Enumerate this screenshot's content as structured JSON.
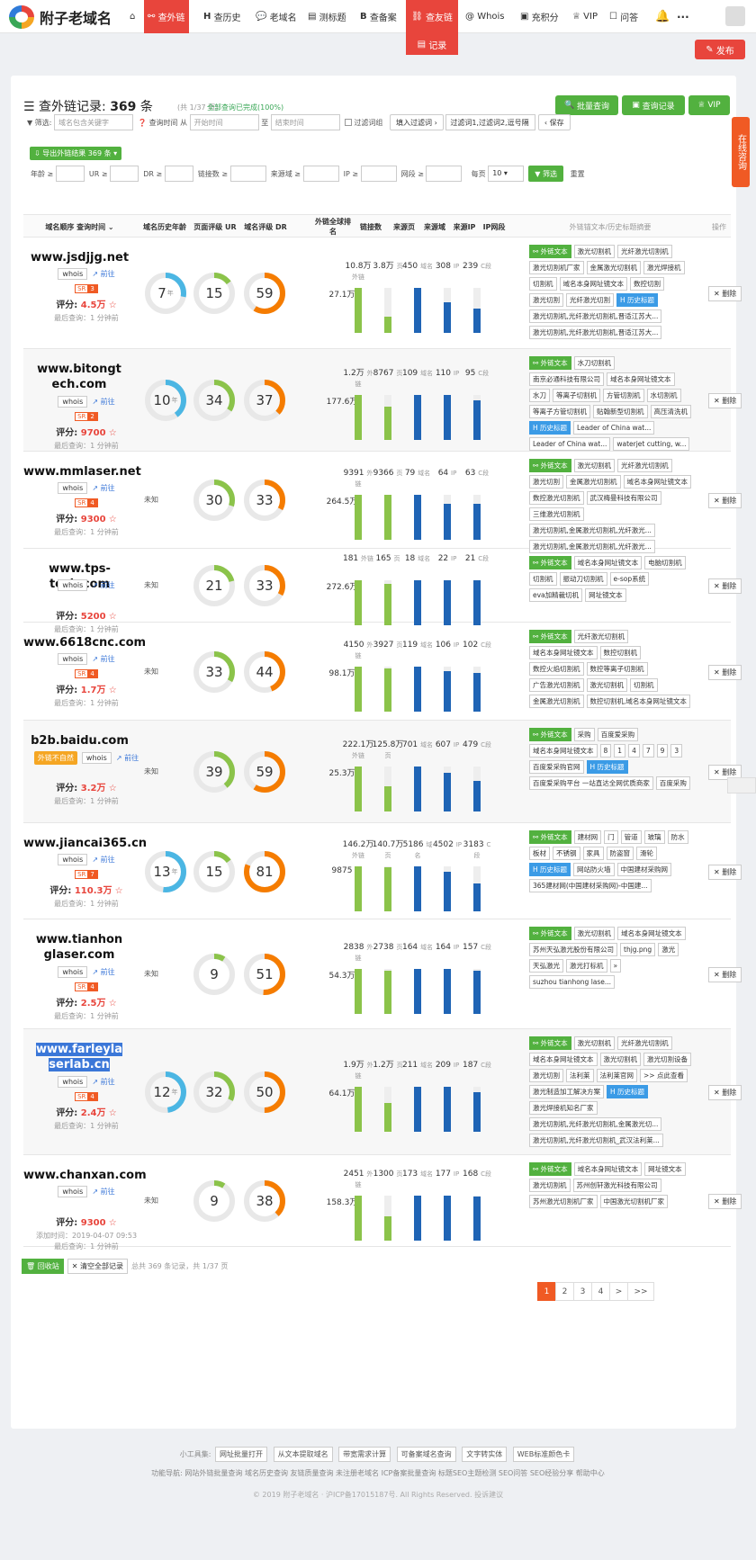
{
  "nav": {
    "logo": "附子老域名",
    "items": [
      {
        "label": "查外链",
        "icon": "link-icon"
      },
      {
        "label": "查历史",
        "icon": "history-icon"
      },
      {
        "label": "老域名",
        "icon": "chat-icon"
      },
      {
        "label": "测标题",
        "icon": "doc-icon"
      },
      {
        "label": "查备案",
        "icon": "beian-icon"
      },
      {
        "label": "查友链",
        "icon": "friendlink-icon"
      },
      {
        "label": "Whois",
        "icon": "at-icon"
      },
      {
        "label": "充积分",
        "icon": "wallet-icon"
      },
      {
        "label": "VIP",
        "icon": "vip-icon"
      },
      {
        "label": "问答",
        "icon": "qa-icon"
      }
    ],
    "sub_item": "记录",
    "publish": "发布"
  },
  "header": {
    "title_prefix": "查外链记录:",
    "count": "369",
    "unit": "条",
    "pages": "(共 1/37 页)",
    "status": "全部查询已完成(100%)",
    "btn_batch": "批量查询",
    "btn_records": "查询记录",
    "btn_vip": "VIP"
  },
  "side_float": "在线咨询",
  "filters": {
    "label_filter": "筛选:",
    "placeholder_domain": "域名包含关键字",
    "label_time": "查询时间 从",
    "placeholder_start": "开始时间",
    "label_to": "至",
    "placeholder_end": "结束时间",
    "label_filter_words": "过滤词组",
    "btn_enter_filter": "填入过滤词",
    "filter_words_value": "过滤词1,过滤词2,逗号隔",
    "btn_save": "保存",
    "export": "导出外链结果 369 条",
    "age": "年龄 ≥",
    "ur": "UR ≥",
    "dr": "DR ≥",
    "links": "链接数 ≥",
    "sources": "来源域 ≥",
    "ip": "IP ≥",
    "cseg": "网段 ≥",
    "perpage": "每页",
    "perpage_val": "10",
    "btn_filter": "筛选",
    "btn_reset": "重置"
  },
  "columns": [
    "域名顺序 查询时间",
    "域名历史年龄",
    "页面评级 UR",
    "域名评级 DR",
    "外链全球排名",
    "链接数",
    "来源页",
    "来源域",
    "来源IP",
    "IP网段",
    "外链锚文本/历史标题摘要",
    "操作"
  ],
  "rows": [
    {
      "domain": "www.jsdjjg.net",
      "sr": "3",
      "score": "4.5万",
      "last": "最后查询：1 分钟前",
      "age": "7",
      "age_unit": "年",
      "ur": "15",
      "dr": "59",
      "rank": "27.1万",
      "links": "10.8万",
      "links_u": "外链",
      "pages": "3.8万",
      "pages_u": "页",
      "refd": "450",
      "refd_u": "域名",
      "ips": "308",
      "ips_u": "IP",
      "cseg": "239",
      "cseg_u": "C段",
      "tags": [
        {
          "t": "外链文本",
          "k": "g"
        },
        {
          "t": "激光切割机"
        },
        {
          "t": "光纤激光切割机"
        },
        {
          "t": "激光切割机厂家"
        },
        {
          "t": "金属激光切割机"
        },
        {
          "t": "激光焊接机"
        },
        {
          "t": "切割机"
        },
        {
          "t": "域名本身网址镜文本"
        },
        {
          "t": "数控切割"
        },
        {
          "t": "激光切割"
        },
        {
          "t": "光纤激光切割"
        },
        {
          "t": "历史标题",
          "k": "b"
        },
        {
          "t": "激光切割机,光纤激光切割机,晋适江苏大..."
        },
        {
          "t": "激光切割机,光纤激光切割机,晋适江苏大..."
        }
      ],
      "del": "删除"
    },
    {
      "domain": "www.bitongtech.com",
      "sr": "2",
      "score": "9700",
      "last": "最后查询：1 分钟前",
      "age": "10",
      "age_unit": "年",
      "ur": "34",
      "dr": "37",
      "rank": "177.6万",
      "links": "1.2万",
      "links_u": "外链",
      "pages": "8767",
      "pages_u": "页",
      "refd": "109",
      "refd_u": "域名",
      "ips": "110",
      "ips_u": "IP",
      "cseg": "95",
      "cseg_u": "C段",
      "tags": [
        {
          "t": "外链文本",
          "k": "g"
        },
        {
          "t": "水刀切割机"
        },
        {
          "t": "南京必通科技有限公司"
        },
        {
          "t": "域名本身网址镜文本"
        },
        {
          "t": "水刀"
        },
        {
          "t": "等离子切割机"
        },
        {
          "t": "方管切割机"
        },
        {
          "t": "水切割机"
        },
        {
          "t": "等离子方管切割机"
        },
        {
          "t": "贴翰新型切割机"
        },
        {
          "t": "高压清洗机"
        },
        {
          "t": "历史标题",
          "k": "b"
        },
        {
          "t": "Leader of China wat..."
        },
        {
          "t": "Leader of China wat..."
        },
        {
          "t": "waterjet cutting, w..."
        }
      ],
      "del": "删除"
    },
    {
      "domain": "www.mmlaser.net",
      "sr": "4",
      "score": "9300",
      "last": "最后查询：1 分钟前",
      "age": "",
      "age_unit": "",
      "ur": "30",
      "dr": "33",
      "rank": "264.5万",
      "links": "9391",
      "links_u": "外链",
      "pages": "9366",
      "pages_u": "页",
      "refd": "79",
      "refd_u": "域名",
      "ips": "64",
      "ips_u": "IP",
      "cseg": "63",
      "cseg_u": "C段",
      "tags": [
        {
          "t": "外链文本",
          "k": "g"
        },
        {
          "t": "激光切割机"
        },
        {
          "t": "光纤激光切割机"
        },
        {
          "t": "激光切割"
        },
        {
          "t": "金属激光切割机"
        },
        {
          "t": "域名本身网址镜文本"
        },
        {
          "t": "数控激光切割机"
        },
        {
          "t": "武汉梅曼科技有限公司"
        },
        {
          "t": "三维激光切割机"
        },
        {
          "t": "激光切割机,金属激光切割机,光纤激光..."
        },
        {
          "t": "激光切割机,金属激光切割机,光纤激光..."
        }
      ],
      "del": "删除"
    },
    {
      "domain": "www.tps-tech.com",
      "sr": "",
      "score": "5200",
      "last": "最后查询：1 分钟前",
      "age": "",
      "age_unit": "",
      "ur": "21",
      "dr": "33",
      "rank": "272.6万",
      "links": "181",
      "links_u": "外链",
      "pages": "165",
      "pages_u": "页",
      "refd": "18",
      "refd_u": "域名",
      "ips": "22",
      "ips_u": "IP",
      "cseg": "21",
      "cseg_u": "C段",
      "tags": [
        {
          "t": "外链文本",
          "k": "g"
        },
        {
          "t": "域名本身网址镜文本"
        },
        {
          "t": "电脑切割机"
        },
        {
          "t": "切割机"
        },
        {
          "t": "振动刀切割机"
        },
        {
          "t": "e-sop系统"
        },
        {
          "t": "eva加精裁切机"
        },
        {
          "t": "网址镜文本"
        }
      ],
      "del": "删除"
    },
    {
      "domain": "www.6618cnc.com",
      "sr": "4",
      "score": "1.7万",
      "last": "最后查询：1 分钟前",
      "age": "",
      "age_unit": "",
      "ur": "33",
      "dr": "44",
      "rank": "98.1万",
      "links": "4150",
      "links_u": "外链",
      "pages": "3927",
      "pages_u": "页",
      "refd": "119",
      "refd_u": "域名",
      "ips": "106",
      "ips_u": "IP",
      "cseg": "102",
      "cseg_u": "C段",
      "tags": [
        {
          "t": "外链文本",
          "k": "g"
        },
        {
          "t": "光纤激光切割机"
        },
        {
          "t": "域名本身网址镜文本"
        },
        {
          "t": "数控切割机"
        },
        {
          "t": "数控火焰切割机"
        },
        {
          "t": "数控等离子切割机"
        },
        {
          "t": "广告激光切割机"
        },
        {
          "t": "激光切割机"
        },
        {
          "t": "切割机"
        },
        {
          "t": "金属激光切割机"
        },
        {
          "t": "数控切割机,域名本身网址镜文本"
        }
      ],
      "del": "删除"
    },
    {
      "domain": "b2b.baidu.com",
      "warn": "外链不自然",
      "sr": "",
      "score": "3.2万",
      "last": "最后查询：1 分钟前",
      "age": "",
      "age_unit": "",
      "ur": "39",
      "dr": "59",
      "rank": "25.3万",
      "links": "222.1万",
      "links_u": "外链",
      "pages": "125.8万",
      "pages_u": "页",
      "refd": "701",
      "refd_u": "域名",
      "ips": "607",
      "ips_u": "IP",
      "cseg": "479",
      "cseg_u": "C段",
      "tags": [
        {
          "t": "外链文本",
          "k": "g"
        },
        {
          "t": "采购"
        },
        {
          "t": "百度爱采购"
        },
        {
          "t": "域名本身网址镜文本"
        },
        {
          "t": "8"
        },
        {
          "t": "1"
        },
        {
          "t": "4"
        },
        {
          "t": "7"
        },
        {
          "t": "9"
        },
        {
          "t": "3"
        },
        {
          "t": "百度爱采购官网"
        },
        {
          "t": "历史标题",
          "k": "b"
        },
        {
          "t": "百度爱采购平台 一站直达全网优质商家"
        },
        {
          "t": "百度采购"
        }
      ],
      "del": "删除"
    },
    {
      "domain": "www.jiancai365.cn",
      "sr": "7",
      "score": "110.3万",
      "last": "最后查询：1 分钟前",
      "age": "13",
      "age_unit": "年",
      "ur": "15",
      "dr": "81",
      "rank": "9875",
      "links": "146.2万",
      "links_u": "外链",
      "pages": "140.7万",
      "pages_u": "页",
      "refd": "5186",
      "refd_u": "域名",
      "ips": "4502",
      "ips_u": "IP",
      "cseg": "3183",
      "cseg_u": "C段",
      "tags": [
        {
          "t": "外链文本",
          "k": "g"
        },
        {
          "t": "建材网"
        },
        {
          "t": "门"
        },
        {
          "t": "管道"
        },
        {
          "t": "玻璃"
        },
        {
          "t": "防水"
        },
        {
          "t": "板材"
        },
        {
          "t": "不锈钢"
        },
        {
          "t": "家具"
        },
        {
          "t": "防盗窗"
        },
        {
          "t": "滑轮"
        },
        {
          "t": "历史标题",
          "k": "b"
        },
        {
          "t": "网站防火墙"
        },
        {
          "t": "中国建材采购网"
        },
        {
          "t": "365建材网(中国建材采购网)-中国建..."
        }
      ],
      "del": "删除"
    },
    {
      "domain": "www.tianhonglaser.com",
      "sr": "4",
      "score": "2.5万",
      "last": "最后查询：1 分钟前",
      "age": "",
      "age_unit": "",
      "ur": "9",
      "dr": "51",
      "rank": "54.3万",
      "links": "2838",
      "links_u": "外链",
      "pages": "2738",
      "pages_u": "页",
      "refd": "164",
      "refd_u": "域名",
      "ips": "164",
      "ips_u": "IP",
      "cseg": "157",
      "cseg_u": "C段",
      "tags": [
        {
          "t": "外链文本",
          "k": "g"
        },
        {
          "t": "激光切割机"
        },
        {
          "t": "域名本身网址镜文本"
        },
        {
          "t": "苏州天弘激光股份有限公司"
        },
        {
          "t": "thjg.png"
        },
        {
          "t": "激光"
        },
        {
          "t": "天弘激光"
        },
        {
          "t": "激光打标机"
        },
        {
          "t": "»"
        },
        {
          "t": "suzhou tianhong lase..."
        }
      ],
      "del": "删除"
    },
    {
      "domain": "www.farleylaserlab.cn",
      "selected": true,
      "sr": "4",
      "score": "2.4万",
      "last": "最后查询：1 分钟前",
      "age": "12",
      "age_unit": "年",
      "ur": "32",
      "dr": "50",
      "rank": "64.1万",
      "links": "1.9万",
      "links_u": "外链",
      "pages": "1.2万",
      "pages_u": "页",
      "refd": "211",
      "refd_u": "域名",
      "ips": "209",
      "ips_u": "IP",
      "cseg": "187",
      "cseg_u": "C段",
      "tags": [
        {
          "t": "外链文本",
          "k": "g"
        },
        {
          "t": "激光切割机"
        },
        {
          "t": "光纤激光切割机"
        },
        {
          "t": "域名本身网址镜文本"
        },
        {
          "t": "激光切割机"
        },
        {
          "t": "激光切割设备"
        },
        {
          "t": "激光切割"
        },
        {
          "t": "法利莱"
        },
        {
          "t": "法利莱官网"
        },
        {
          "t": ">> 点此查看"
        },
        {
          "t": "激光制造加工解决方案"
        },
        {
          "t": "历史标题",
          "k": "b"
        },
        {
          "t": "激光焊接机知名厂家"
        },
        {
          "t": "激光切割机,光纤激光切割机,金属激光切..."
        },
        {
          "t": "激光切割机,光纤激光切割机_武汉法利莱..."
        }
      ],
      "del": "删除"
    },
    {
      "domain": "www.chanxan.com",
      "sr": "",
      "score": "9300",
      "last": "添加时间：2019-04-07 09:53",
      "last2": "最后查询：1 分钟前",
      "age": "",
      "age_unit": "",
      "ur": "9",
      "dr": "38",
      "rank": "158.3万",
      "links": "2451",
      "links_u": "外链",
      "pages": "1300",
      "pages_u": "页",
      "refd": "173",
      "refd_u": "域名",
      "ips": "177",
      "ips_u": "IP",
      "cseg": "168",
      "cseg_u": "C段",
      "tags": [
        {
          "t": "外链文本",
          "k": "g"
        },
        {
          "t": "域名本身网址镜文本"
        },
        {
          "t": "网址镜文本"
        },
        {
          "t": "激光切割机"
        },
        {
          "t": "苏州创轩激光科技有限公司"
        },
        {
          "t": "苏州激光切割机厂家"
        },
        {
          "t": "中国激光切割机厂家"
        }
      ],
      "del": "删除"
    }
  ],
  "row_common": {
    "whois": "whois",
    "goto": "前往",
    "score_label": "评分:",
    "unknown": "未知"
  },
  "footer_btns": {
    "recycle": "回收站",
    "clear": "清空全部记录",
    "summary": "总共 369 条记录，共 1/37 页"
  },
  "pager": [
    "1",
    "2",
    "3",
    "4",
    ">",
    ">>"
  ],
  "footer": {
    "tools_label": "小工具集:",
    "tools": [
      "网址批量打开",
      "从文本提取域名",
      "带宽需求计算",
      "可备案域名查询",
      "文字转实体",
      "WEB标准颜色卡"
    ],
    "nav_line": "功能导航: 网站外链批量查询 域名历史查询 友链质量查询 未注册老域名 ICP备案批量查询 标题SEO主题检测 SEO问答 SEO经验分享 帮助中心",
    "copyright": "© 2019 附子老域名 · 沪ICP备17015187号. All Rights Reserved. 投诉建议"
  },
  "colors": {
    "accent": "#e8453c",
    "green": "#52b13f",
    "blue": "#3b77d8",
    "ring_blue": "#4bb6e3",
    "ring_green": "#8bc34a",
    "ring_orange": "#f57c00",
    "bar_green": "#8bc34a",
    "bar_blue": "#1f64b5"
  }
}
